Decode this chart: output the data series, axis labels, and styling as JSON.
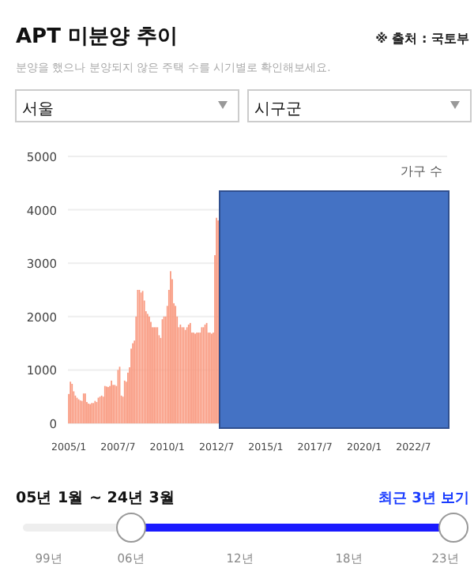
{
  "chart_data": {
    "type": "bar",
    "title": "APT 미분양 추이",
    "subtitle": "분양을 했으나 분양되지 않은 주택 수를 시기별로 확인해보세요.",
    "ylabel": "가구 수",
    "annotations": [
      "※ 출처 : 국토부",
      "서울",
      "시구군",
      "05년 1월 ~ 24년 3월",
      "최근 3년 보기",
      "99년",
      "06년",
      "12년",
      "18년",
      "23년"
    ],
    "categories": [
      "2005/1",
      null,
      null,
      null,
      null,
      null,
      null,
      null,
      null,
      null,
      null,
      null,
      null,
      null,
      null,
      null,
      null,
      null,
      null,
      null,
      null,
      null,
      null,
      null,
      null,
      null,
      null,
      null,
      null,
      null,
      "2007/7",
      null,
      null,
      null,
      null,
      null,
      null,
      null,
      null,
      null,
      null,
      null,
      null,
      null,
      null,
      null,
      null,
      null,
      null,
      null,
      null,
      null,
      null,
      null,
      null,
      null,
      null,
      null,
      null,
      null,
      "2010/1",
      null,
      null,
      null,
      null,
      null,
      null,
      null,
      null,
      null,
      null,
      null,
      null,
      null,
      null,
      null,
      null,
      null,
      null,
      null,
      null,
      null,
      null,
      null,
      null,
      null,
      null,
      null,
      null,
      null,
      "2012/7",
      null,
      null,
      null,
      null,
      null,
      null,
      null,
      null,
      null,
      null,
      null,
      null,
      null,
      null,
      null,
      null,
      null,
      null,
      null,
      null,
      null,
      null,
      null,
      null,
      null,
      null,
      null,
      null,
      null,
      "2015/1",
      null,
      null,
      null,
      null,
      null,
      null,
      null,
      null,
      null,
      null,
      null,
      null,
      null,
      null,
      null,
      null,
      null,
      null,
      null,
      null,
      null,
      null,
      null,
      null,
      null,
      null,
      null,
      null,
      null,
      "2017/7",
      null,
      null,
      null,
      null,
      null,
      null,
      null,
      null,
      null,
      null,
      null,
      null,
      null,
      null,
      null,
      null,
      null,
      null,
      null,
      null,
      null,
      null,
      null,
      null,
      null,
      null,
      null,
      null,
      null,
      "2020/1",
      null,
      null,
      null,
      null,
      null,
      null,
      null,
      null,
      null,
      null,
      null,
      null,
      null,
      null,
      null,
      null,
      null,
      null,
      null,
      null,
      null,
      null,
      null,
      null,
      null,
      null,
      null,
      null,
      null,
      "2022/7",
      null,
      null,
      null,
      null,
      null,
      null,
      null,
      null,
      null,
      null,
      null,
      null,
      null,
      null,
      null,
      null,
      null,
      null,
      null,
      null
    ],
    "values": [
      550,
      780,
      740,
      600,
      520,
      480,
      450,
      430,
      420,
      560,
      560,
      400,
      370,
      360,
      380,
      380,
      420,
      400,
      480,
      500,
      520,
      500,
      700,
      690,
      680,
      700,
      800,
      720,
      720,
      700,
      1000,
      1060,
      520,
      500,
      800,
      780,
      950,
      1050,
      1400,
      1500,
      1550,
      2000,
      2500,
      2500,
      2450,
      2480,
      2300,
      2100,
      2050,
      2000,
      1900,
      1800,
      1800,
      1800,
      1800,
      1650,
      1600,
      1950,
      2000,
      2000,
      2200,
      2500,
      2850,
      2700,
      2250,
      2200,
      2000,
      1800,
      1850,
      1800,
      1800,
      1750,
      1800,
      1850,
      1880,
      1700,
      1700,
      1680,
      1700,
      1700,
      1700,
      1800,
      1800,
      1850,
      1880,
      1700,
      1700,
      1680,
      1700,
      3150,
      3850,
      3800,
      null,
      null,
      null,
      null,
      null,
      null,
      null,
      null,
      null,
      null,
      null,
      null,
      null,
      null,
      null,
      null,
      null,
      null,
      null,
      null,
      null,
      null,
      null,
      null,
      null,
      null,
      null,
      null,
      null,
      null,
      null,
      null,
      null,
      null,
      null,
      null,
      null,
      null,
      null,
      null,
      null,
      null,
      null,
      null,
      null,
      null,
      null,
      null,
      null,
      null,
      null,
      null,
      null,
      null,
      null,
      null,
      null,
      null,
      null,
      null,
      null,
      null,
      null,
      null,
      null,
      null,
      null,
      null,
      null,
      null,
      null,
      null,
      null,
      null,
      null,
      null,
      null,
      null,
      null,
      null,
      null,
      null,
      null,
      null,
      null,
      null,
      null,
      null,
      null,
      null,
      null,
      null,
      null,
      null,
      null,
      null,
      null,
      null,
      null,
      null,
      null,
      null,
      null,
      null,
      null,
      null,
      null,
      null,
      null,
      null,
      null,
      null,
      null,
      null,
      null,
      null,
      null,
      null,
      null,
      null,
      null,
      null,
      null,
      null,
      null,
      null,
      null,
      null,
      null,
      null,
      null,
      null,
      null,
      null,
      null,
      null,
      null,
      null,
      null
    ],
    "color": "#f99a80",
    "ylim": [
      0,
      5000
    ],
    "yticks": [
      0,
      1000,
      2000,
      3000,
      4000,
      5000
    ],
    "grid": "y"
  }
}
